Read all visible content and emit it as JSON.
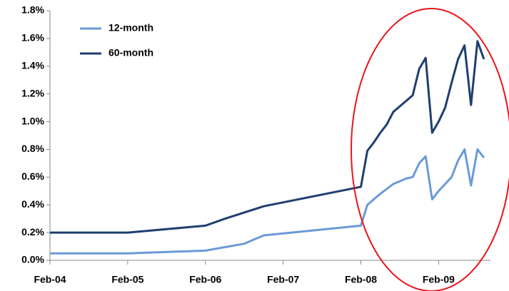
{
  "chart_data": {
    "type": "line",
    "xlim": [
      "2004-02",
      "2009-10"
    ],
    "xticks": [
      {
        "value": "2004-02",
        "label": "Feb-04"
      },
      {
        "value": "2005-02",
        "label": "Feb-05"
      },
      {
        "value": "2006-02",
        "label": "Feb-06"
      },
      {
        "value": "2007-02",
        "label": "Feb-07"
      },
      {
        "value": "2008-02",
        "label": "Feb-08"
      },
      {
        "value": "2009-02",
        "label": "Feb-09"
      }
    ],
    "ylim": [
      0,
      1.8
    ],
    "yticks": [
      {
        "value": 0,
        "label": "0.0%"
      },
      {
        "value": 0.2,
        "label": "0.2%"
      },
      {
        "value": 0.4,
        "label": "0.4%"
      },
      {
        "value": 0.6,
        "label": "0.6%"
      },
      {
        "value": 0.8,
        "label": "0.8%"
      },
      {
        "value": 1.0,
        "label": "1.0%"
      },
      {
        "value": 1.2,
        "label": "1.2%"
      },
      {
        "value": 1.4,
        "label": "1.4%"
      },
      {
        "value": 1.6,
        "label": "1.6%"
      },
      {
        "value": 1.8,
        "label": "1.8%"
      }
    ],
    "grid": false,
    "legend": "top-left",
    "series": [
      {
        "name": "12-month",
        "color": "#6a9ad8",
        "x": [
          "2004-02",
          "2005-02",
          "2006-02",
          "2006-08",
          "2006-11",
          "2008-02",
          "2008-03",
          "2008-05",
          "2008-07",
          "2008-09",
          "2008-10",
          "2008-11",
          "2008-12",
          "2009-01",
          "2009-02",
          "2009-03",
          "2009-04",
          "2009-05",
          "2009-06",
          "2009-07",
          "2009-08",
          "2009-09"
        ],
        "values": [
          0.05,
          0.05,
          0.07,
          0.12,
          0.18,
          0.25,
          0.4,
          0.48,
          0.55,
          0.59,
          0.6,
          0.7,
          0.75,
          0.44,
          0.5,
          0.55,
          0.6,
          0.72,
          0.8,
          0.54,
          0.8,
          0.74
        ]
      },
      {
        "name": "60-month",
        "color": "#1f3f6e",
        "x": [
          "2004-02",
          "2005-02",
          "2006-02",
          "2006-05",
          "2006-11",
          "2008-02",
          "2008-03",
          "2008-04",
          "2008-05",
          "2008-06",
          "2008-07",
          "2008-08",
          "2008-09",
          "2008-10",
          "2008-11",
          "2008-12",
          "2009-01",
          "2009-02",
          "2009-03",
          "2009-04",
          "2009-05",
          "2009-06",
          "2009-07",
          "2009-08",
          "2009-09"
        ],
        "values": [
          0.2,
          0.2,
          0.25,
          0.3,
          0.39,
          0.53,
          0.79,
          0.85,
          0.92,
          0.98,
          1.07,
          1.11,
          1.15,
          1.19,
          1.38,
          1.46,
          0.92,
          1.0,
          1.1,
          1.28,
          1.45,
          1.55,
          1.12,
          1.58,
          1.45
        ]
      }
    ]
  }
}
